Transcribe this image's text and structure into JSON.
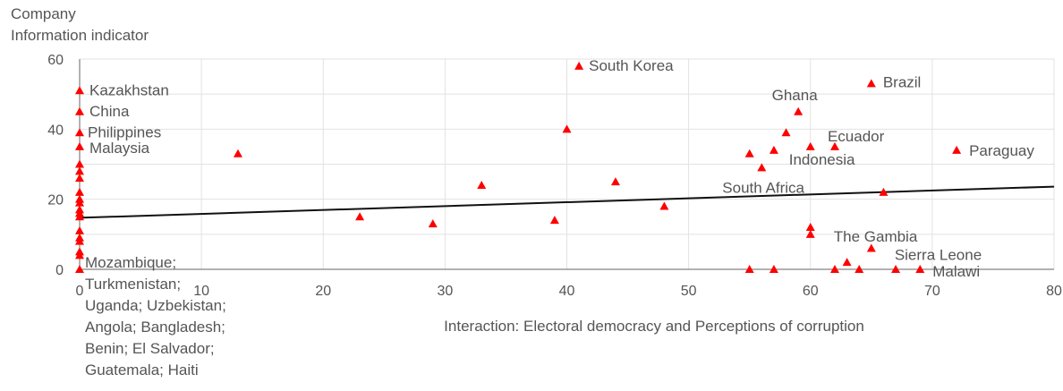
{
  "chart_data": {
    "type": "scatter",
    "ylabel_lines": [
      "Company",
      "Information indicator"
    ],
    "xlabel": "Interaction: Electoral democracy and Perceptions of corruption",
    "xlim": [
      0,
      80
    ],
    "ylim": [
      0,
      60
    ],
    "xticks": [
      0,
      10,
      20,
      30,
      40,
      50,
      60,
      70,
      80
    ],
    "yticks": [
      0,
      20,
      40,
      60
    ],
    "grid": true,
    "marker_color": "#ff0000",
    "trendline": {
      "x": [
        0,
        80
      ],
      "y": [
        14.7,
        23.6
      ],
      "color": "#111111"
    },
    "points": [
      {
        "x": 0,
        "y": 51,
        "label": "Kazakhstan"
      },
      {
        "x": 0,
        "y": 45,
        "label": "China"
      },
      {
        "x": 0,
        "y": 39,
        "label": "Philippines"
      },
      {
        "x": 0,
        "y": 35,
        "label": "Malaysia"
      },
      {
        "x": 0,
        "y": 30
      },
      {
        "x": 0,
        "y": 28
      },
      {
        "x": 0,
        "y": 26
      },
      {
        "x": 0,
        "y": 22
      },
      {
        "x": 0,
        "y": 20
      },
      {
        "x": 0,
        "y": 19
      },
      {
        "x": 0,
        "y": 17
      },
      {
        "x": 0,
        "y": 16
      },
      {
        "x": 0,
        "y": 15
      },
      {
        "x": 0,
        "y": 11
      },
      {
        "x": 0,
        "y": 9
      },
      {
        "x": 0,
        "y": 8
      },
      {
        "x": 0,
        "y": 5
      },
      {
        "x": 0,
        "y": 4
      },
      {
        "x": 0,
        "y": 0,
        "label": "Mozambique; Turkmenistan; Uganda; Uzbekistan; Angola; Bangladesh; Benin; El Salvador; Guatemala; Haiti"
      },
      {
        "x": 13,
        "y": 33
      },
      {
        "x": 23,
        "y": 15
      },
      {
        "x": 29,
        "y": 13
      },
      {
        "x": 33,
        "y": 24
      },
      {
        "x": 39,
        "y": 14
      },
      {
        "x": 40,
        "y": 40
      },
      {
        "x": 41,
        "y": 58,
        "label": "South Korea"
      },
      {
        "x": 44,
        "y": 25
      },
      {
        "x": 48,
        "y": 18
      },
      {
        "x": 55,
        "y": 33
      },
      {
        "x": 55,
        "y": 0
      },
      {
        "x": 56,
        "y": 29,
        "label": "South Africa"
      },
      {
        "x": 57,
        "y": 34
      },
      {
        "x": 57,
        "y": 0
      },
      {
        "x": 58,
        "y": 39
      },
      {
        "x": 59,
        "y": 45,
        "label": "Ghana"
      },
      {
        "x": 60,
        "y": 35,
        "label": "Indonesia"
      },
      {
        "x": 60,
        "y": 12
      },
      {
        "x": 60,
        "y": 10,
        "label": "The Gambia"
      },
      {
        "x": 62,
        "y": 35,
        "label": "Ecuador"
      },
      {
        "x": 62,
        "y": 0
      },
      {
        "x": 63,
        "y": 2
      },
      {
        "x": 64,
        "y": 0
      },
      {
        "x": 65,
        "y": 53,
        "label": "Brazil"
      },
      {
        "x": 65,
        "y": 6,
        "label": "Sierra Leone"
      },
      {
        "x": 66,
        "y": 22
      },
      {
        "x": 67,
        "y": 0
      },
      {
        "x": 69,
        "y": 0,
        "label": "Malawi"
      },
      {
        "x": 72,
        "y": 34,
        "label": "Paraguay"
      }
    ]
  }
}
